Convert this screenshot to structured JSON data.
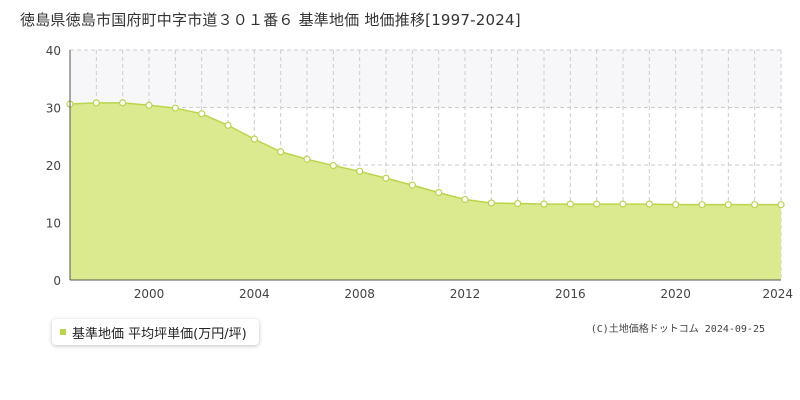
{
  "title": "徳島県徳島市国府町中字市道３０１番６ 基準地価 地価推移[1997-2024]",
  "legend": {
    "label": "基準地価 平均坪単価(万円/坪)"
  },
  "copyright": "(C)土地価格ドットコム 2024-09-25",
  "colors": {
    "fill": "#dcea8f",
    "line": "#b9d54a",
    "marker_edge": "#b9d54a",
    "marker_face": "#ffffff",
    "band": "#f7f7f9",
    "grid": "#cccccc",
    "axis": "#555555"
  },
  "chart_data": {
    "type": "area",
    "x": [
      1997,
      1998,
      1999,
      2000,
      2001,
      2002,
      2003,
      2004,
      2005,
      2006,
      2007,
      2008,
      2009,
      2010,
      2011,
      2012,
      2013,
      2014,
      2015,
      2016,
      2017,
      2018,
      2019,
      2020,
      2021,
      2022,
      2023,
      2024
    ],
    "series": [
      {
        "name": "基準地価 平均坪単価(万円/坪)",
        "values": [
          30.6,
          30.8,
          30.8,
          30.4,
          29.9,
          28.9,
          26.9,
          24.5,
          22.3,
          21.0,
          19.9,
          18.9,
          17.7,
          16.5,
          15.2,
          14.0,
          13.4,
          13.3,
          13.2,
          13.2,
          13.2,
          13.2,
          13.2,
          13.1,
          13.1,
          13.1,
          13.1,
          13.1
        ]
      }
    ],
    "x_ticks": [
      2000,
      2004,
      2008,
      2012,
      2016,
      2020,
      2024
    ],
    "y_ticks": [
      0,
      10,
      20,
      30,
      40
    ],
    "xlim": [
      1997,
      2024
    ],
    "ylim": [
      0,
      40
    ],
    "band": [
      30,
      40
    ],
    "grid": true,
    "legend_position": "bottom-left"
  }
}
